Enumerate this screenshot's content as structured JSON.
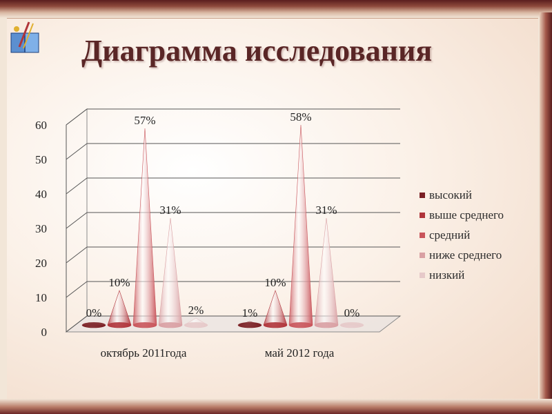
{
  "title": "Диаграмма исследования",
  "logo": "book-pen-logo",
  "colors": {
    "title": "#5a2626",
    "series": [
      "#7a1f24",
      "#b0353b",
      "#c9555b",
      "#d9a0a3",
      "#e6c9c9"
    ]
  },
  "chart_data": {
    "type": "bar",
    "bar_shape": "cone-3d",
    "categories": [
      "октябрь 2011года",
      "май 2012 года"
    ],
    "series": [
      {
        "name": "высокий",
        "values": [
          0,
          1
        ],
        "labels": [
          "0%",
          "1%"
        ]
      },
      {
        "name": "выше среднего",
        "values": [
          10,
          10
        ],
        "labels": [
          "10%",
          "10%"
        ]
      },
      {
        "name": "средний",
        "values": [
          57,
          58
        ],
        "labels": [
          "57%",
          "58%"
        ]
      },
      {
        "name": "ниже среднего",
        "values": [
          31,
          31
        ],
        "labels": [
          "31%",
          "31%"
        ]
      },
      {
        "name": "низкий",
        "values": [
          2,
          0
        ],
        "labels": [
          "2%",
          "0%"
        ]
      }
    ],
    "y_ticks": [
      "0",
      "10",
      "20",
      "30",
      "40",
      "50",
      "60"
    ],
    "ylim": [
      0,
      60
    ],
    "grid": true,
    "legend": "right"
  }
}
